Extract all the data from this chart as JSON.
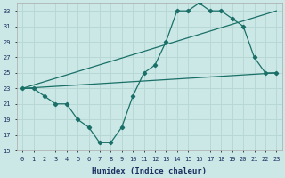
{
  "xlabel": "Humidex (Indice chaleur)",
  "bg_color": "#cce8e6",
  "grid_color": "#b8d8d5",
  "line_color": "#1a7068",
  "xlim": [
    -0.5,
    23.5
  ],
  "ylim": [
    15,
    34
  ],
  "yticks": [
    15,
    17,
    19,
    21,
    23,
    25,
    27,
    29,
    31,
    33
  ],
  "xticks": [
    0,
    1,
    2,
    3,
    4,
    5,
    6,
    7,
    8,
    9,
    10,
    11,
    12,
    13,
    14,
    15,
    16,
    17,
    18,
    19,
    20,
    21,
    22,
    23
  ],
  "line1_x": [
    0,
    1,
    2,
    3,
    4,
    5,
    6,
    7,
    8,
    9,
    10,
    11,
    12,
    13,
    14,
    15,
    16,
    17,
    18,
    19,
    20,
    21,
    22,
    23
  ],
  "line1_y": [
    23,
    23,
    22,
    21,
    21,
    19,
    18,
    16,
    16,
    18,
    22,
    25,
    26,
    29,
    33,
    33,
    34,
    33,
    33,
    32,
    31,
    27,
    25,
    25
  ],
  "line2_x": [
    0,
    23
  ],
  "line2_y": [
    23,
    33
  ],
  "line3_x": [
    0,
    23
  ],
  "line3_y": [
    23,
    25
  ]
}
